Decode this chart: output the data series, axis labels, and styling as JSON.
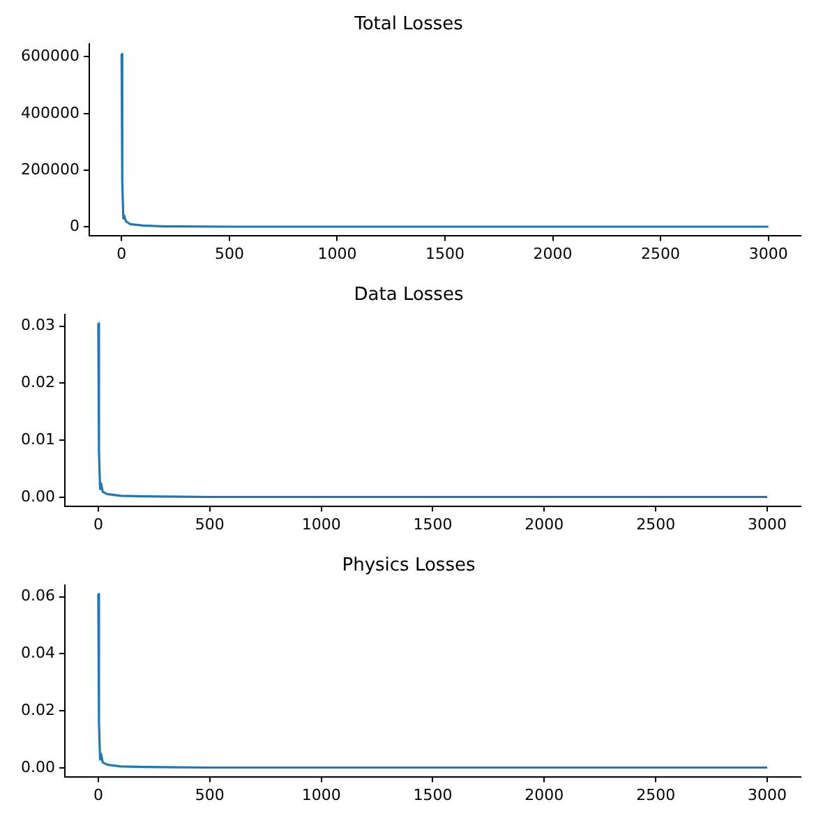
{
  "chart_data": [
    {
      "type": "line",
      "title": "Total Losses",
      "x": [
        0,
        3,
        8,
        12,
        20,
        40,
        100,
        200,
        500,
        1000,
        1500,
        2000,
        2500,
        3000
      ],
      "series": [
        {
          "color": "#1f77b4",
          "values": [
            610000,
            160000,
            30000,
            40000,
            20000,
            10000,
            5000,
            2000,
            1000,
            1000,
            1000,
            1000,
            1000,
            1000
          ]
        }
      ],
      "xlim": [
        -150,
        3150
      ],
      "xticks": [
        0,
        500,
        1000,
        1500,
        2000,
        2500,
        3000
      ],
      "ylim": [
        -30000,
        645000
      ],
      "yticks": [
        0,
        200000,
        400000,
        600000
      ],
      "grid": false,
      "legend": false
    },
    {
      "type": "line",
      "title": "Data Losses",
      "x": [
        0,
        3,
        8,
        12,
        20,
        40,
        100,
        200,
        500,
        1000,
        1500,
        2000,
        2500,
        3000
      ],
      "series": [
        {
          "color": "#1f77b4",
          "values": [
            0.0305,
            0.008,
            0.0015,
            0.0025,
            0.001,
            0.0006,
            0.0003,
            0.0002,
            0.0001,
            0.0001,
            0.0001,
            0.0001,
            0.0001,
            0.0001
          ]
        }
      ],
      "xlim": [
        -150,
        3150
      ],
      "xticks": [
        0,
        500,
        1000,
        1500,
        2000,
        2500,
        3000
      ],
      "ylim": [
        -0.0015,
        0.032
      ],
      "yticks": [
        {
          "value": 0,
          "label": "0.00"
        },
        {
          "value": 0.01,
          "label": "0.01"
        },
        {
          "value": 0.02,
          "label": "0.02"
        },
        {
          "value": 0.03,
          "label": "0.03"
        }
      ],
      "grid": false,
      "legend": false
    },
    {
      "type": "line",
      "title": "Physics Losses",
      "x": [
        0,
        3,
        8,
        12,
        20,
        40,
        100,
        200,
        500,
        1000,
        1500,
        2000,
        2500,
        3000
      ],
      "series": [
        {
          "color": "#1f77b4",
          "values": [
            0.061,
            0.016,
            0.003,
            0.005,
            0.002,
            0.0012,
            0.0006,
            0.0004,
            0.0002,
            0.0002,
            0.0002,
            0.0002,
            0.0002,
            0.0002
          ]
        }
      ],
      "xlim": [
        -150,
        3150
      ],
      "xticks": [
        0,
        500,
        1000,
        1500,
        2000,
        2500,
        3000
      ],
      "ylim": [
        -0.003,
        0.064
      ],
      "yticks": [
        {
          "value": 0,
          "label": "0.00"
        },
        {
          "value": 0.02,
          "label": "0.02"
        },
        {
          "value": 0.04,
          "label": "0.04"
        },
        {
          "value": 0.06,
          "label": "0.06"
        }
      ],
      "grid": false,
      "legend": false
    }
  ]
}
